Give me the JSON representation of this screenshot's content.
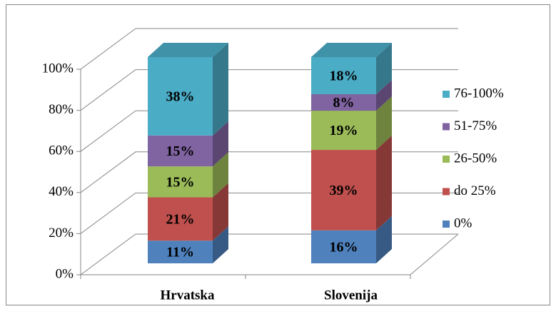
{
  "chart_data": {
    "type": "bar3d_stacked",
    "categories": [
      "Hrvatska",
      "Slovenija"
    ],
    "series": [
      {
        "name": "0%",
        "color": "#4f81bd",
        "values": [
          11,
          16
        ],
        "value_labels": [
          "11%",
          "16%"
        ]
      },
      {
        "name": "do 25%",
        "color": "#c0504d",
        "values": [
          21,
          39
        ],
        "value_labels": [
          "21%",
          "39%"
        ]
      },
      {
        "name": "26-50%",
        "color": "#9bbb59",
        "values": [
          15,
          19
        ],
        "value_labels": [
          "15%",
          "19%"
        ]
      },
      {
        "name": "51-75%",
        "color": "#8064a2",
        "values": [
          15,
          8
        ],
        "value_labels": [
          "15%",
          "8%"
        ]
      },
      {
        "name": "76-100%",
        "color": "#4bacc6",
        "values": [
          38,
          18
        ],
        "value_labels": [
          "38%",
          "18%"
        ]
      }
    ],
    "ylim": [
      0,
      100
    ],
    "yticks": [
      {
        "value": 0,
        "label": "0%"
      },
      {
        "value": 20,
        "label": "20%"
      },
      {
        "value": 40,
        "label": "40%"
      },
      {
        "value": 60,
        "label": "60%"
      },
      {
        "value": 80,
        "label": "80%"
      },
      {
        "value": 100,
        "label": "100%"
      }
    ],
    "grid": true,
    "legend": "right"
  }
}
